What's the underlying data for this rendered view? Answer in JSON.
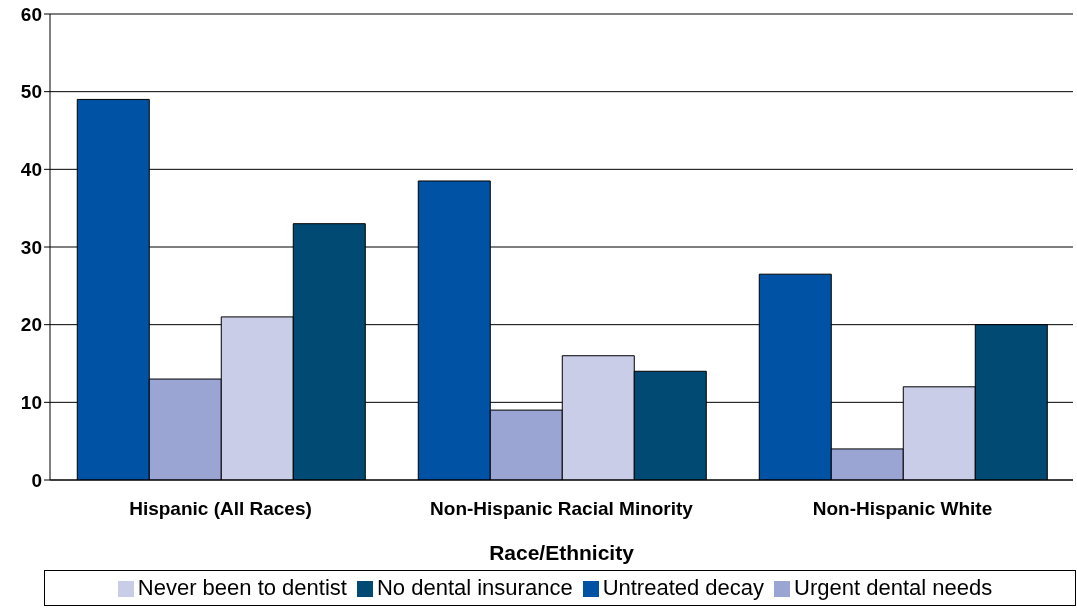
{
  "chart_data": {
    "type": "bar",
    "xlabel": "Race/Ethnicity",
    "categories": [
      "Hispanic (All Races)",
      "Non-Hispanic Racial Minority",
      "Non-Hispanic White"
    ],
    "series": [
      {
        "name": "Untreated decay",
        "color": "#0052a5",
        "values": [
          49,
          38.5,
          26.5
        ]
      },
      {
        "name": "Urgent dental needs",
        "color": "#9aa5d4",
        "values": [
          13,
          9,
          4
        ]
      },
      {
        "name": "Never been to dentist",
        "color": "#c9cde8",
        "values": [
          21,
          16,
          12
        ]
      },
      {
        "name": "No dental insurance",
        "color": "#004a73",
        "values": [
          33,
          14,
          20
        ]
      }
    ],
    "ylim": [
      0,
      60
    ],
    "yticks": [
      0,
      10,
      20,
      30,
      40,
      50,
      60
    ],
    "grid": "y",
    "legend": "bottom"
  }
}
